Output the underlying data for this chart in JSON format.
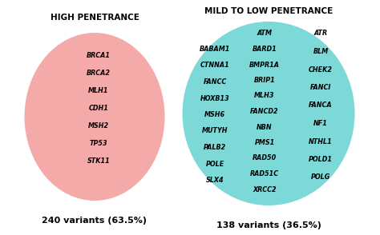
{
  "left_title": "HIGH PENETRANCE",
  "right_title": "MILD TO LOW PENETRANCE",
  "left_circle_color": "#F5AAAA",
  "right_circle_color": "#7DD8D8",
  "left_genes": [
    "BRCA1",
    "BRCA2",
    "MLH1",
    "CDH1",
    "MSH2",
    "TP53",
    "STK11"
  ],
  "right_genes_col1": [
    "BABAM1",
    "CTNNA1",
    "FANCC",
    "HOXB13",
    "MSH6",
    "MUTYH",
    "PALB2",
    "POLE",
    "SLX4"
  ],
  "right_genes_col2": [
    "ATM",
    "BARD1",
    "BMPR1A",
    "BRIP1",
    "MLH3",
    "FANCD2",
    "NBN",
    "PMS1",
    "RAD50",
    "RAD51C",
    "XRCC2"
  ],
  "right_genes_col3": [
    "ATR",
    "BLM",
    "CHEK2",
    "FANCI",
    "FANCA",
    "NF1",
    "NTHL1",
    "POLD1",
    "POLG"
  ],
  "left_subtitle": "240 variants (63.5%)",
  "right_subtitle": "138 variants (36.5%)",
  "background_color": "#ffffff",
  "text_color": "#000000",
  "title_fontsize": 7.5,
  "gene_fontsize": 5.8,
  "subtitle_fontsize": 8
}
